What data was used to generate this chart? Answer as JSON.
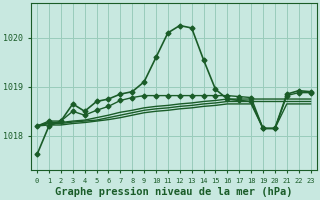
{
  "bg_color": "#c8e8e0",
  "plot_bg_color": "#c8e8e0",
  "grid_color": "#99ccbb",
  "line_color": "#1a5c28",
  "xlabel": "Graphe pression niveau de la mer (hPa)",
  "xlabel_fontsize": 7.5,
  "yticks": [
    1018,
    1019,
    1020
  ],
  "xlim": [
    -0.5,
    23.5
  ],
  "ylim": [
    1017.3,
    1020.7
  ],
  "series": [
    {
      "y": [
        1017.62,
        1018.2,
        1018.3,
        1018.65,
        1018.5,
        1018.7,
        1018.75,
        1018.85,
        1018.9,
        1019.1,
        1019.6,
        1020.1,
        1020.25,
        1020.2,
        1019.55,
        1018.95,
        1018.75,
        1018.72,
        1018.7,
        1018.15,
        1018.15,
        1018.85,
        1018.92,
        1018.9
      ],
      "marker": true,
      "linewidth": 1.2
    },
    {
      "y": [
        1018.2,
        1018.27,
        1018.27,
        1018.3,
        1018.32,
        1018.37,
        1018.42,
        1018.48,
        1018.52,
        1018.57,
        1018.6,
        1018.62,
        1018.65,
        1018.67,
        1018.7,
        1018.72,
        1018.75,
        1018.75,
        1018.75,
        1018.75,
        1018.75,
        1018.75,
        1018.75,
        1018.75
      ],
      "marker": false,
      "linewidth": 1.0
    },
    {
      "y": [
        1018.2,
        1018.25,
        1018.25,
        1018.28,
        1018.3,
        1018.32,
        1018.37,
        1018.42,
        1018.47,
        1018.52,
        1018.55,
        1018.57,
        1018.6,
        1018.62,
        1018.65,
        1018.67,
        1018.7,
        1018.7,
        1018.7,
        1018.7,
        1018.7,
        1018.7,
        1018.7,
        1018.7
      ],
      "marker": false,
      "linewidth": 1.0
    },
    {
      "y": [
        1018.2,
        1018.22,
        1018.22,
        1018.25,
        1018.27,
        1018.3,
        1018.33,
        1018.37,
        1018.42,
        1018.47,
        1018.5,
        1018.52,
        1018.55,
        1018.57,
        1018.6,
        1018.62,
        1018.65,
        1018.65,
        1018.65,
        1018.15,
        1018.15,
        1018.65,
        1018.65,
        1018.65
      ],
      "marker": false,
      "linewidth": 1.0
    },
    {
      "y": [
        1018.2,
        1018.3,
        1018.3,
        1018.5,
        1018.42,
        1018.52,
        1018.6,
        1018.72,
        1018.78,
        1018.82,
        1018.82,
        1018.82,
        1018.82,
        1018.82,
        1018.82,
        1018.82,
        1018.82,
        1018.8,
        1018.78,
        1018.15,
        1018.15,
        1018.82,
        1018.88,
        1018.88
      ],
      "marker": true,
      "linewidth": 1.0
    }
  ],
  "marker_style": "D",
  "marker_size": 2.5,
  "xtick_labels": [
    "0",
    "1",
    "2",
    "3",
    "4",
    "5",
    "6",
    "7",
    "8",
    "9",
    "10",
    "11",
    "12",
    "13",
    "14",
    "15",
    "16",
    "17",
    "18",
    "19",
    "20",
    "21",
    "22",
    "23"
  ]
}
